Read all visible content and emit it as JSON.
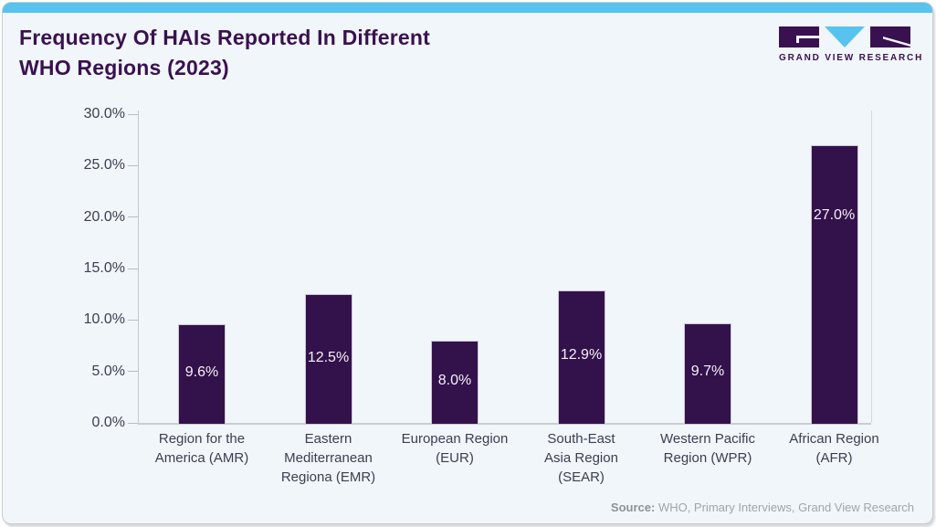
{
  "header": {
    "title": "Frequency Of HAIs Reported In Different\nWHO Regions (2023)",
    "logo_text": "GRAND VIEW RESEARCH"
  },
  "footer": {
    "source_label": "Source:",
    "source_text": " WHO, Primary Interviews, Grand View Research"
  },
  "colors": {
    "bar": "#33114b",
    "accent_blue": "#58c3ee",
    "brand_purple": "#3a1150",
    "card_background": "#f0f6f9",
    "axis_line": "#c9ced5",
    "bar_value_text": "#f5f2f7"
  },
  "chart_data": {
    "type": "bar",
    "title": "Frequency Of HAIs Reported In Different WHO Regions (2023)",
    "categories": [
      "Region for the America (AMR)",
      "Eastern Mediterranean Regiona (EMR)",
      "European Region (EUR)",
      "South-East Asia Region (SEAR)",
      "Western Pacific Region (WPR)",
      "African Region (AFR)"
    ],
    "categories_display": [
      "Region for the\nAmerica (AMR)",
      "Eastern\nMediterranean\nRegiona (EMR)",
      "European Region\n(EUR)",
      "South-East\nAsia Region\n(SEAR)",
      "Western Pacific\nRegion (WPR)",
      "African Region\n(AFR)"
    ],
    "values": [
      9.6,
      12.5,
      8.0,
      12.9,
      9.7,
      27.0
    ],
    "value_labels": [
      "9.6%",
      "12.5%",
      "8.0%",
      "12.9%",
      "9.7%",
      "27.0%"
    ],
    "xlabel": "",
    "ylabel": "",
    "ylim": [
      0,
      30
    ],
    "ytick_step": 5,
    "ytick_labels": [
      "0.0%",
      "5.0%",
      "10.0%",
      "15.0%",
      "20.0%",
      "25.0%",
      "30.0%"
    ],
    "grid": false,
    "legend": false,
    "value_label_position": "inside"
  }
}
